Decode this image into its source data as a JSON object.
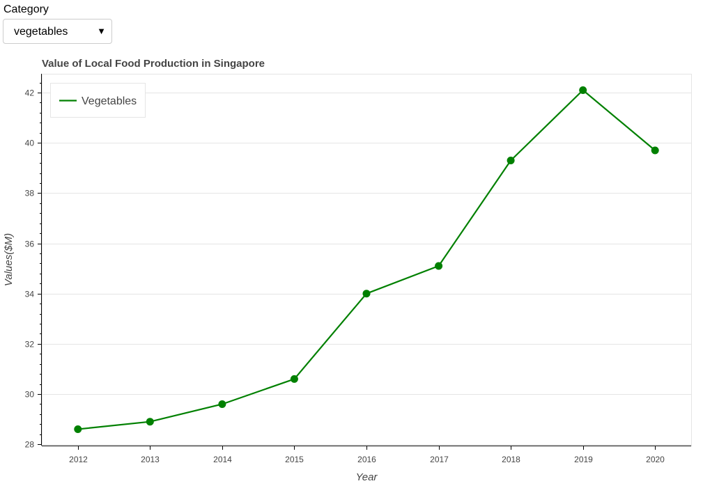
{
  "controls": {
    "category_label": "Category",
    "category_selected": "vegetables"
  },
  "colors": {
    "series": "#008000",
    "grid": "#e5e5e5",
    "axis": "#000000",
    "text": "#444444"
  },
  "chart_data": {
    "type": "line",
    "title": "Value of Local Food Production in Singapore",
    "xlabel": "Year",
    "ylabel": "Values($M)",
    "x": [
      2012,
      2013,
      2014,
      2015,
      2016,
      2017,
      2018,
      2019,
      2020
    ],
    "x_ticks": [
      "2012",
      "2013",
      "2014",
      "2015",
      "2016",
      "2017",
      "2018",
      "2019",
      "2020"
    ],
    "y_ticks": [
      "28",
      "30",
      "32",
      "34",
      "36",
      "38",
      "40",
      "42"
    ],
    "ylim": [
      27.95,
      42.75
    ],
    "xlim": [
      2011.5,
      2020.5
    ],
    "grid": "horizontal",
    "markers": true,
    "legend_position": "top-left",
    "series": [
      {
        "name": "Vegetables",
        "values": [
          28.6,
          28.9,
          29.6,
          30.6,
          34.0,
          35.1,
          39.3,
          42.1,
          39.7
        ]
      }
    ]
  }
}
